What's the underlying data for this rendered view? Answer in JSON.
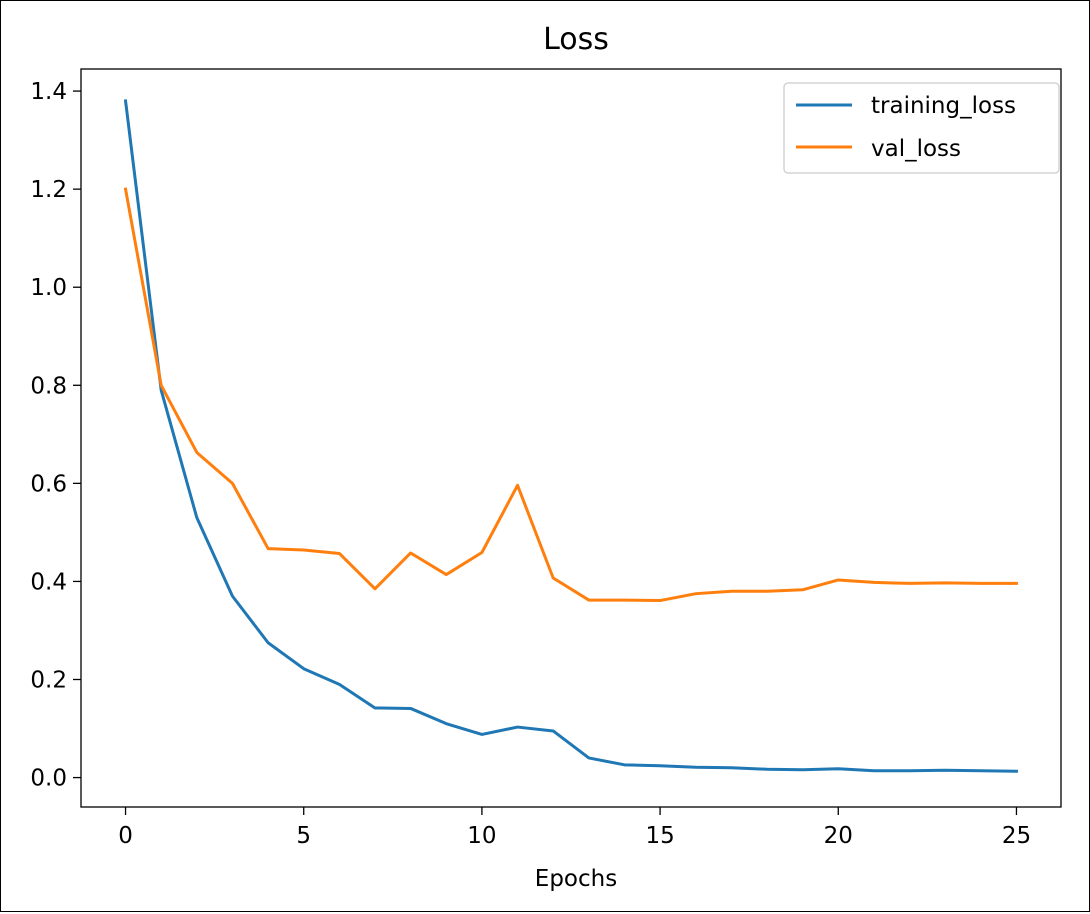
{
  "chart_data": {
    "type": "line",
    "title": "Loss",
    "xlabel": "Epochs",
    "ylabel": "",
    "xlim": [
      -1.25,
      26.25
    ],
    "ylim": [
      -0.06,
      1.445
    ],
    "xticks": [
      0,
      5,
      10,
      15,
      20,
      25
    ],
    "yticks": [
      0.0,
      0.2,
      0.4,
      0.6,
      0.8,
      1.0,
      1.2,
      1.4
    ],
    "grid": false,
    "legend_position": "top-right",
    "x": [
      0,
      1,
      2,
      3,
      4,
      5,
      6,
      7,
      8,
      9,
      10,
      11,
      12,
      13,
      14,
      15,
      16,
      17,
      18,
      19,
      20,
      21,
      22,
      23,
      24,
      25
    ],
    "series": [
      {
        "name": "training_loss",
        "color": "#1f77b4",
        "values": [
          1.38,
          0.79,
          0.53,
          0.37,
          0.275,
          0.222,
          0.19,
          0.142,
          0.141,
          0.11,
          0.088,
          0.103,
          0.095,
          0.04,
          0.026,
          0.024,
          0.021,
          0.02,
          0.017,
          0.016,
          0.018,
          0.014,
          0.014,
          0.015,
          0.014,
          0.013
        ]
      },
      {
        "name": "val_loss",
        "color": "#ff7f0e",
        "values": [
          1.2,
          0.8,
          0.663,
          0.6,
          0.467,
          0.464,
          0.457,
          0.385,
          0.458,
          0.414,
          0.459,
          0.596,
          0.407,
          0.362,
          0.362,
          0.361,
          0.375,
          0.38,
          0.38,
          0.383,
          0.403,
          0.398,
          0.396,
          0.397,
          0.396,
          0.396
        ]
      }
    ]
  }
}
